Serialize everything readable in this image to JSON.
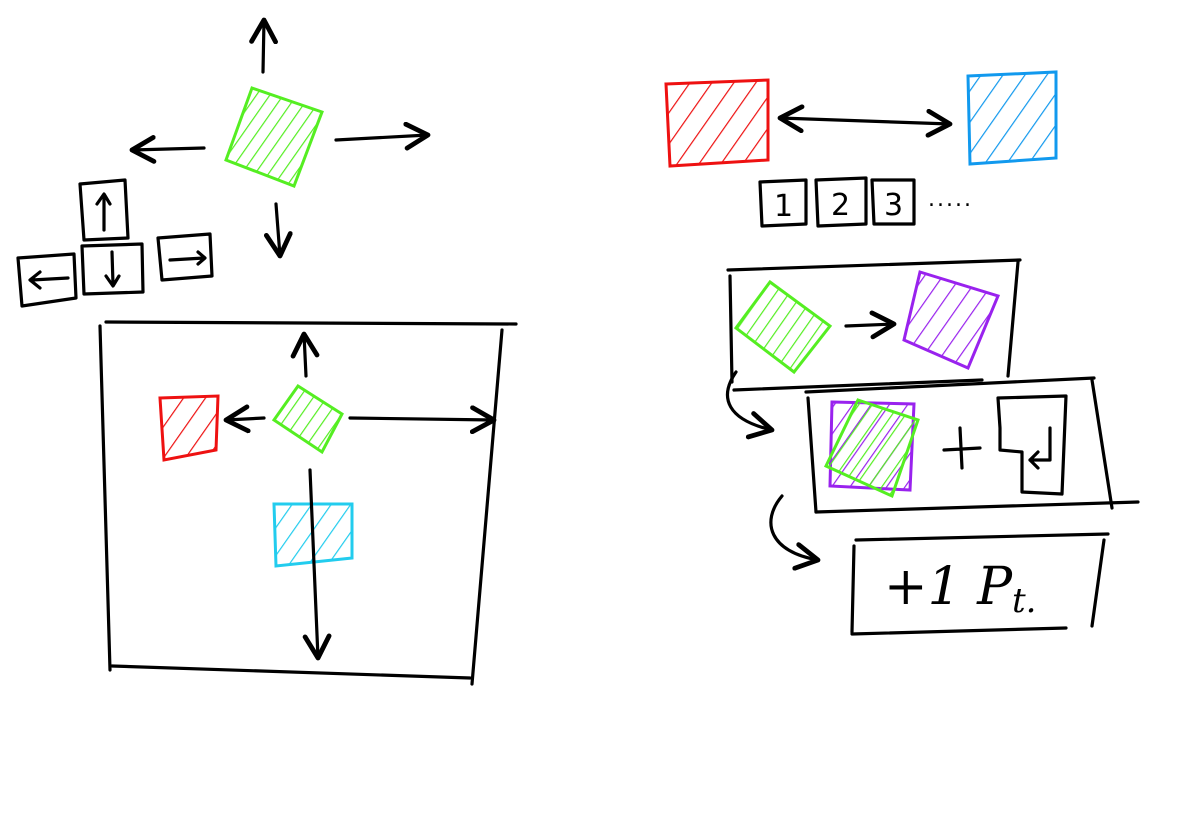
{
  "colors": {
    "ink": "#000000",
    "player": "#55ee22",
    "red_block": "#ee1111",
    "blue_block": "#1199ee",
    "cyan_block": "#22ccee",
    "purple_block": "#9922ee"
  },
  "controls": {
    "keys": [
      "↑",
      "←",
      "↓",
      "→"
    ]
  },
  "level_selector": {
    "numbers": [
      "1",
      "2",
      "3"
    ],
    "ellipsis": "....."
  },
  "scoring": {
    "enter_key_icon": "enter-key-icon",
    "plus_sign": "+",
    "reward": "+1 P",
    "reward_suffix": "t."
  }
}
